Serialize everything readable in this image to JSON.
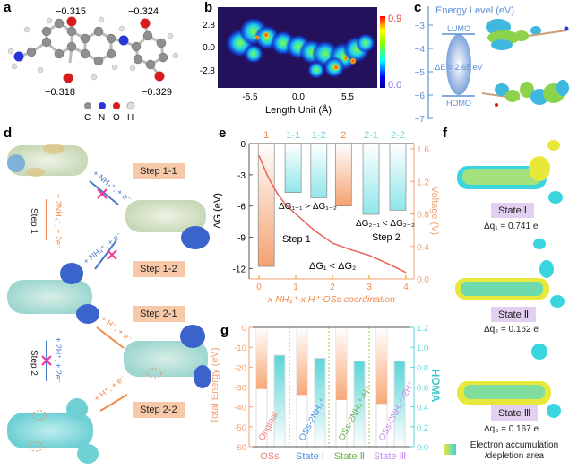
{
  "panels": {
    "a": {
      "label": "a",
      "charges": [
        "−0.315",
        "−0.324",
        "−0.318",
        "−0.329"
      ],
      "legend": [
        {
          "symbol": "C",
          "color": "#8c8c8c"
        },
        {
          "symbol": "N",
          "color": "#2636d9"
        },
        {
          "symbol": "O",
          "color": "#d61d1d"
        },
        {
          "symbol": "H",
          "color": "#dcdcdc"
        }
      ]
    },
    "b": {
      "label": "b"
    },
    "c": {
      "label": "c"
    },
    "d": {
      "label": "d",
      "steps": [
        "Step 1-1",
        "Step 1-2",
        "Step 2-1",
        "Step 2-2"
      ],
      "vertical_labels": [
        "Step 1",
        "Step 2"
      ],
      "reactions": {
        "step1_total": "+ 2NH₄⁺, + 2e⁻",
        "step11": "+ NH₄⁺, + e⁻",
        "step12": "+ NH₄⁺, + e⁻",
        "step2_total": "+ 2H⁺, + 2e⁻",
        "step21": "+ H⁺, + e⁻",
        "step22": "+ H⁺, + e⁻"
      },
      "colors": {
        "orange": "#f08a4b",
        "blue": "#4a78c9",
        "cross": "#e8389a"
      }
    },
    "e": {
      "label": "e"
    },
    "f": {
      "label": "f",
      "states": [
        {
          "name": "State Ⅰ",
          "dq": "Δq₁ = 0.741 e"
        },
        {
          "name": "State Ⅱ",
          "dq": "Δq₂ = 0.162 e"
        },
        {
          "name": "State Ⅲ",
          "dq": "Δq₃ = 0.167 e"
        }
      ],
      "legend": "Electron accumulation /depletion area",
      "colors": {
        "accumulation": "#e8e83a",
        "depletion": "#3ad6e0"
      }
    },
    "g": {
      "label": "g"
    }
  },
  "chart_data": [
    {
      "panel": "b",
      "type": "heatmap",
      "xlabel": "Length Unit (Å)",
      "xticks": [
        "-5.5",
        "0.0",
        "5.5"
      ],
      "yticks": [
        "2.8",
        "0.0",
        "-2.8"
      ],
      "colorbar": {
        "min": "0.0",
        "max": "0.9",
        "colormap": "jet"
      }
    },
    {
      "panel": "c",
      "type": "line",
      "title": "Energy Level (eV)",
      "yticks": [
        "-3",
        "-4",
        "-5",
        "-6",
        "-7"
      ],
      "ylim": [
        -7,
        -3
      ],
      "levels": [
        {
          "name": "LUMO",
          "value": -3.4
        },
        {
          "name": "HOMO",
          "value": -6.05
        }
      ],
      "gap_label": "ΔE = 2.65 eV",
      "color": "#5b8fd6"
    },
    {
      "panel": "e",
      "type": "bar",
      "xlabel": "x NH₄⁺-x H⁺-OSs coordination",
      "ylabel": "ΔG (eV)",
      "y2label": "Voltage (V)",
      "xticks": [
        "0",
        "1",
        "2",
        "3",
        "4"
      ],
      "yticks": [
        "0",
        "-3",
        "-6",
        "-9",
        "-12"
      ],
      "y2ticks": [
        "0.0",
        "0.4",
        "0.8",
        "1.2",
        "1.6"
      ],
      "xlim": [
        -0.25,
        4.1
      ],
      "ylim": [
        -13,
        0
      ],
      "y2lim": [
        0,
        1.6
      ],
      "bars": [
        {
          "label": "1",
          "x": 0.2,
          "value": -11.8,
          "kind": "orange"
        },
        {
          "label": "1-1",
          "x": 0.93,
          "value": -4.7,
          "kind": "cyan"
        },
        {
          "label": "1-2",
          "x": 1.63,
          "value": -5.2,
          "kind": "cyan"
        },
        {
          "label": "2",
          "x": 2.3,
          "value": -6.0,
          "kind": "orange"
        },
        {
          "label": "2-1",
          "x": 3.05,
          "value": -6.8,
          "kind": "cyan"
        },
        {
          "label": "2-2",
          "x": 3.78,
          "value": -6.4,
          "kind": "cyan"
        }
      ],
      "voltage_curve": {
        "x": [
          0,
          0.25,
          0.5,
          0.75,
          1,
          1.5,
          2,
          2.5,
          3,
          3.5,
          4
        ],
        "y": [
          1.52,
          1.25,
          1.05,
          0.9,
          0.8,
          0.6,
          0.44,
          0.36,
          0.29,
          0.19,
          0.08
        ]
      },
      "annotations": [
        "ΔG₁₋₁ > ΔG₁₋₂",
        "ΔG₂₋₁ < ΔG₂₋₂",
        "Step 1",
        "Step 2",
        "ΔG₁ < ΔG₂"
      ],
      "colors": {
        "orange": "#f5a070",
        "cyan": "#8fe6ea",
        "curve": "#e8625a",
        "axis2": "#f0a070",
        "labels_top_orange": "#f08a4b",
        "labels_top_cyan": "#6fd4dc"
      }
    },
    {
      "panel": "g",
      "type": "bar",
      "ylabel": "Total Energy (eV)",
      "y2label": "HOMA",
      "yticks": [
        "0",
        "-10",
        "-20",
        "-30",
        "-40",
        "-50",
        "-60"
      ],
      "y2ticks": [
        "1.2",
        "1.0",
        "0.8",
        "0.6",
        "0.4",
        "0.2",
        "0.0"
      ],
      "ylim": [
        -60,
        0
      ],
      "y2lim": [
        0,
        1.2
      ],
      "categories": [
        "OSs",
        "State Ⅰ",
        "State Ⅱ",
        "State Ⅲ"
      ],
      "inner_labels": [
        "Original",
        "OSs-2NH₄⁺",
        "OSs-2NH₄⁺-H⁺",
        "OSs-2NH₄⁺-2H⁺"
      ],
      "category_colors": [
        "#f07a7a",
        "#4a90e2",
        "#6ab04c",
        "#c58af0"
      ],
      "series": [
        {
          "name": "Total Energy",
          "values": [
            -31,
            -34,
            -36.5,
            -38.5
          ],
          "color": "#f7a878"
        },
        {
          "name": "HOMA",
          "values": [
            0.92,
            0.89,
            0.86,
            0.86
          ],
          "color": "#5ad6d8"
        }
      ]
    }
  ]
}
